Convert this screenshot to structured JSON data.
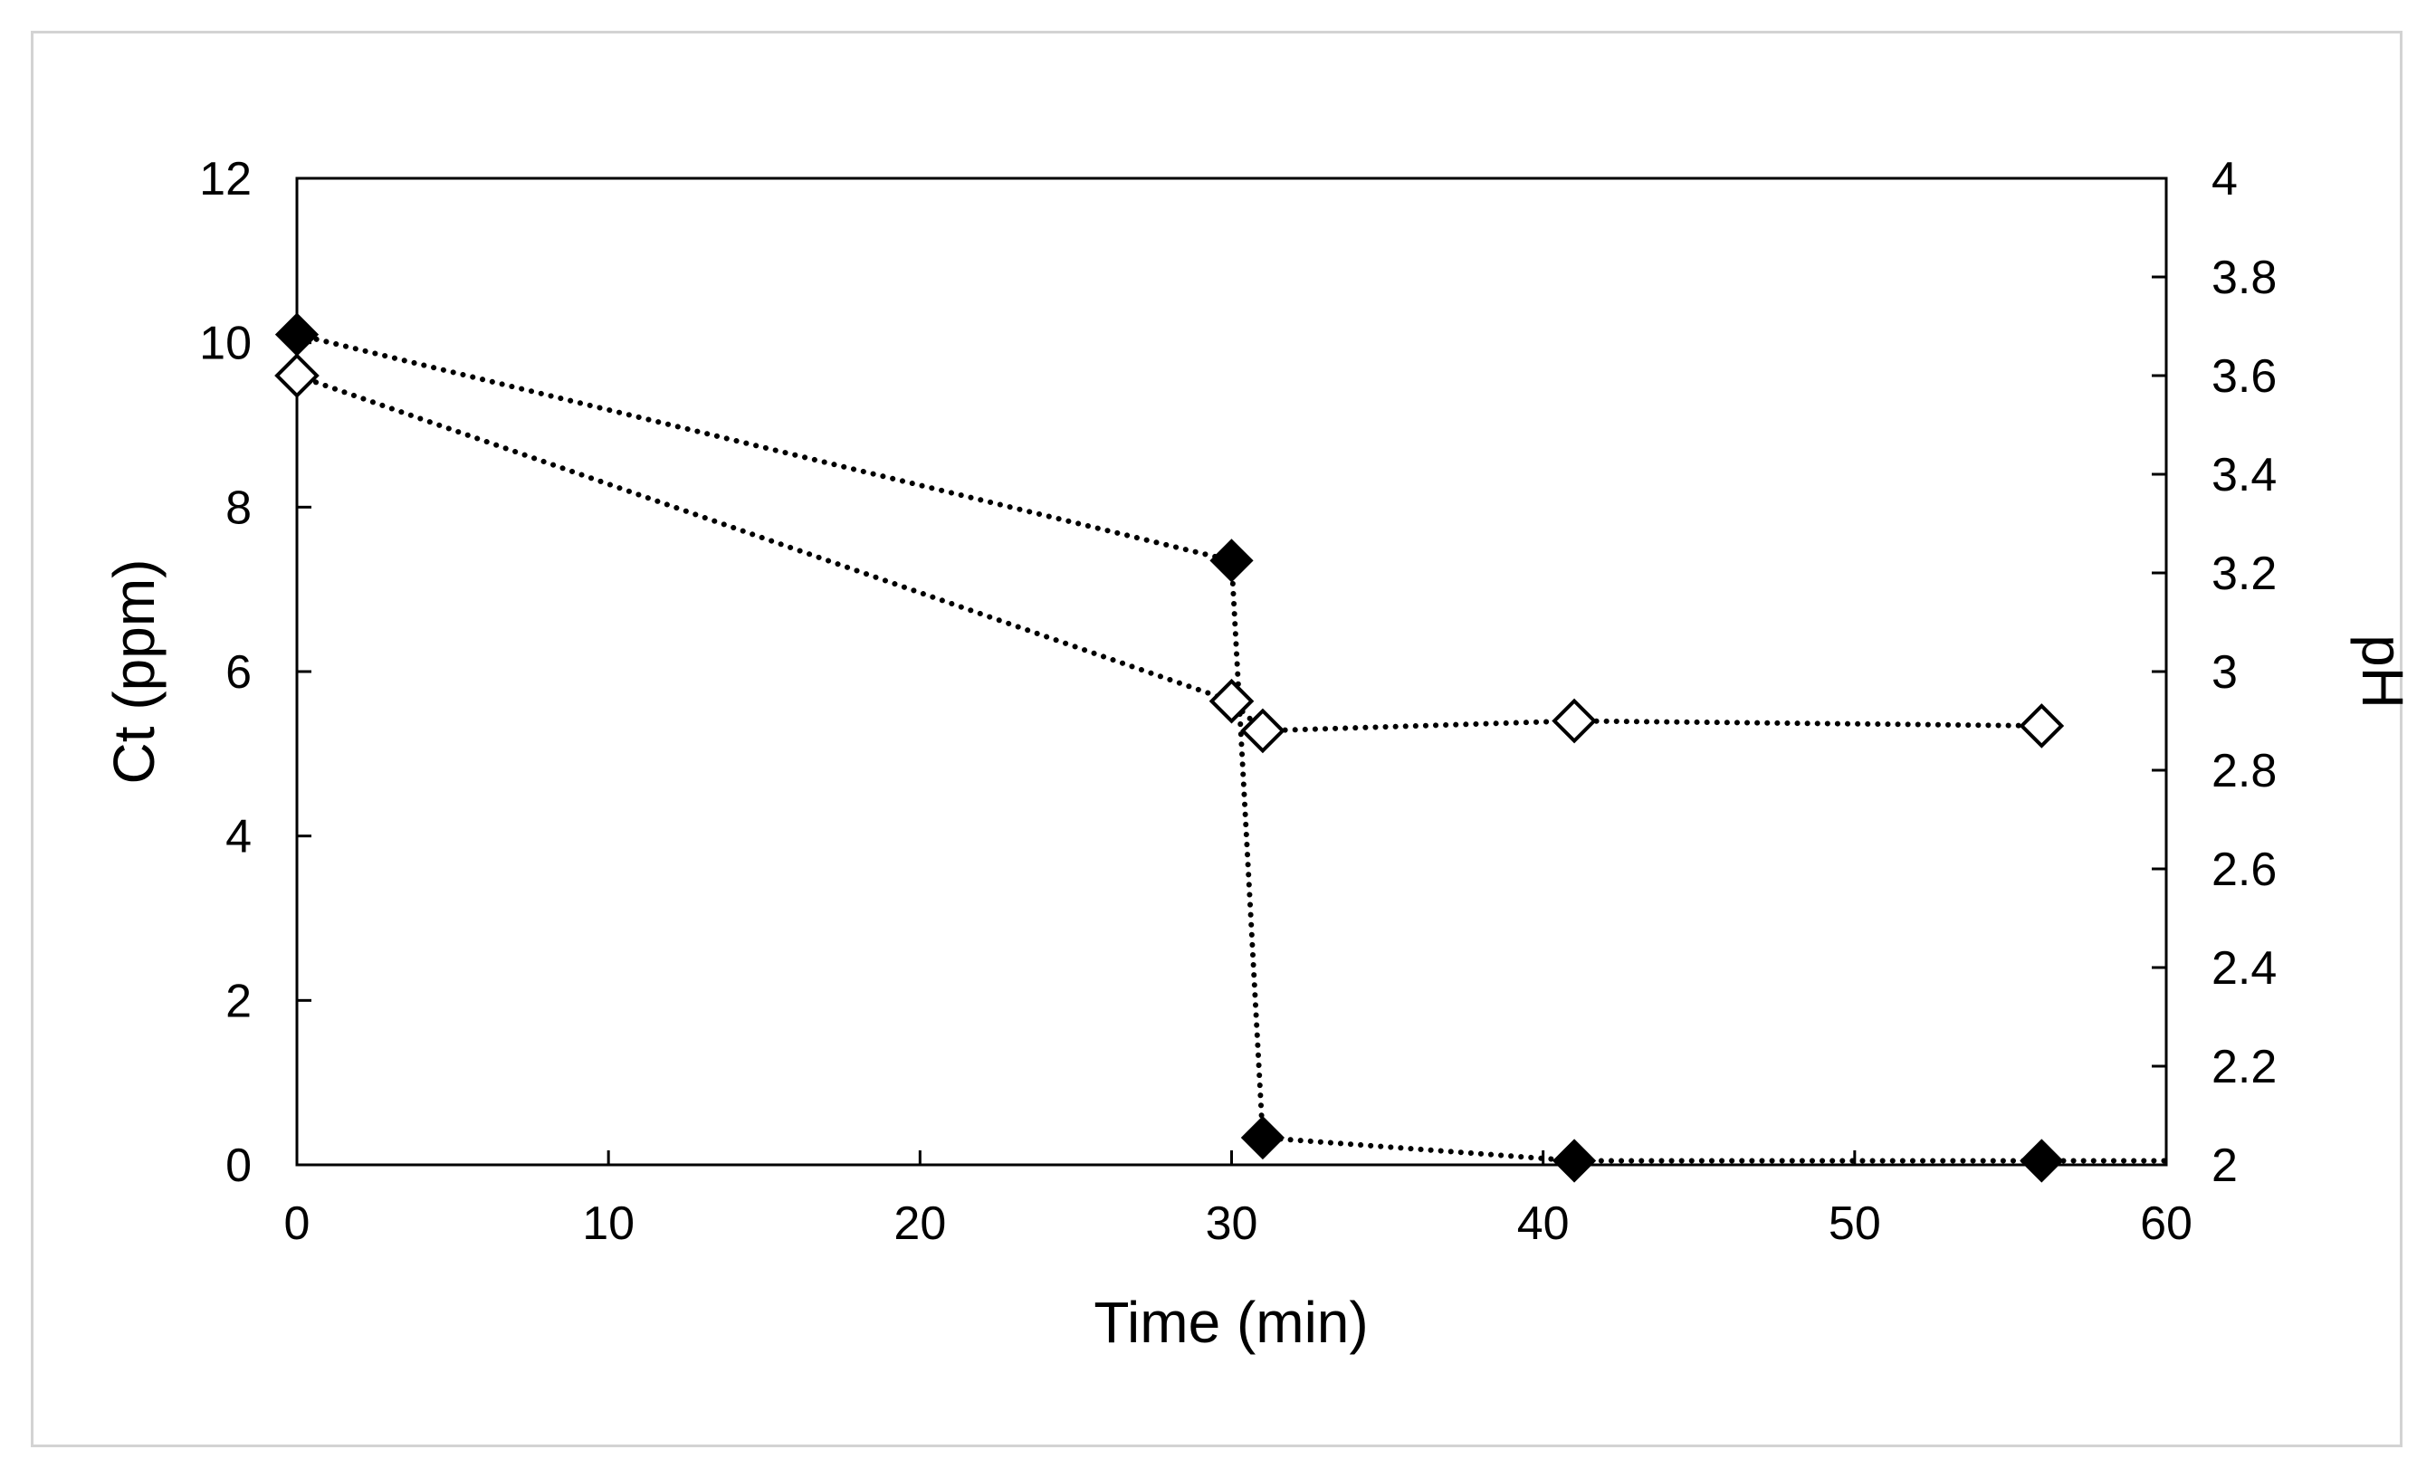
{
  "chart_data": {
    "type": "scatter",
    "title": "",
    "xlabel": "Time (min)",
    "ylabel": "Ct (ppm)",
    "y2label": "pH",
    "xlim": [
      0,
      60
    ],
    "ylim": [
      0,
      12
    ],
    "y2lim": [
      2,
      4
    ],
    "xticks": [
      "0",
      "10",
      "20",
      "30",
      "40",
      "50",
      "60"
    ],
    "yticks": [
      "0",
      "2",
      "4",
      "6",
      "8",
      "10",
      "12"
    ],
    "y2ticks": [
      "2",
      "2.2",
      "2.4",
      "2.6",
      "2.8",
      "3",
      "3.2",
      "3.4",
      "3.6",
      "3.8",
      "4"
    ],
    "grid": false,
    "legend": "none",
    "line_style": "dotted",
    "series": [
      {
        "axis": "left",
        "marker": "filled-diamond",
        "color": "#000000",
        "x": [
          0,
          30,
          31,
          41,
          56,
          60
        ],
        "y": [
          10.1,
          7.35,
          0.33,
          0.05,
          0.05,
          0.05
        ]
      },
      {
        "axis": "right",
        "marker": "open-diamond",
        "color": "#000000",
        "x": [
          0,
          30,
          31,
          41,
          56
        ],
        "y": [
          3.6,
          2.94,
          2.88,
          2.9,
          2.89
        ]
      }
    ]
  }
}
